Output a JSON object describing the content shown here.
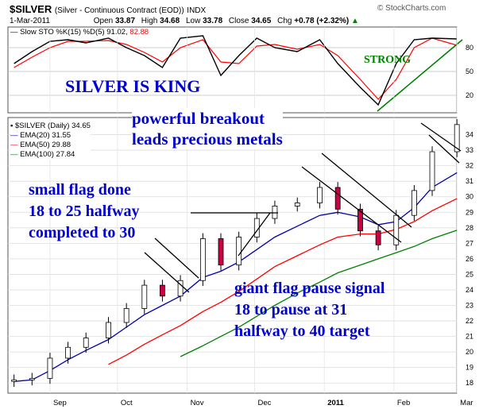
{
  "header": {
    "symbol": "$SILVER",
    "description": "(Silver - Continuous Contract (EOD))",
    "exchange": "INDX",
    "watermark": "© StockCharts.com",
    "date": "1-Mar-2011",
    "open_label": "Open",
    "open": "33.87",
    "high_label": "High",
    "high": "34.68",
    "low_label": "Low",
    "low": "33.78",
    "close_label": "Close",
    "close": "34.65",
    "chg_label": "Chg",
    "chg": "+0.78 (+2.32%)",
    "chg_arrow": "▲"
  },
  "stoch_panel": {
    "legend_prefix": "— Slow STO %K(15) %D(5)",
    "k_value": "91.02,",
    "d_value": "82.88",
    "ticks": [
      20,
      50,
      80
    ],
    "ylim": [
      0,
      100
    ],
    "k_color": "#000000",
    "d_color": "#ff0000"
  },
  "price_panel": {
    "legend_title": "$SILVER (Daily) 34.65",
    "ema20_label": "EMA(20) 31.55",
    "ema50_label": "EMA(50) 29.88",
    "ema100_label": "EMA(100) 27.84",
    "ema20_color": "#0000aa",
    "ema50_color": "#ff0000",
    "ema100_color": "#008000",
    "up_color": "#ffffff",
    "down_color": "#cc0044"
  },
  "annotations": {
    "title": "SILVER IS KING",
    "strong": "STRONG",
    "breakout_line1": "powerful breakout",
    "breakout_line2": "leads precious metals",
    "small_flag_line1": "small flag done",
    "small_flag_line2": "18 to 25 halfway",
    "small_flag_line3": "completed to 30",
    "giant_flag_line1": "giant flag pause signal",
    "giant_flag_line2": "18 to pause at 31",
    "giant_flag_line3": "halfway to 40 target"
  },
  "chart_data": [
    {
      "type": "line",
      "title": "Slow STO %K(15) %D(5)",
      "ylim": [
        0,
        100
      ],
      "x": [
        "2010-08-16",
        "2010-08-24",
        "2010-09-01",
        "2010-09-09",
        "2010-09-17",
        "2010-09-27",
        "2010-10-05",
        "2010-10-13",
        "2010-10-21",
        "2010-10-29",
        "2010-11-08",
        "2010-11-16",
        "2010-11-24",
        "2010-12-02",
        "2010-12-10",
        "2010-12-20",
        "2010-12-30",
        "2011-01-07",
        "2011-01-17",
        "2011-01-25",
        "2011-02-02",
        "2011-02-10",
        "2011-02-18",
        "2011-03-01"
      ],
      "series": [
        {
          "name": "%K",
          "values": [
            60,
            75,
            88,
            90,
            86,
            92,
            80,
            70,
            55,
            92,
            95,
            45,
            70,
            92,
            80,
            75,
            90,
            60,
            30,
            8,
            60,
            90,
            92,
            91
          ]
        },
        {
          "name": "%D",
          "values": [
            55,
            68,
            80,
            88,
            88,
            89,
            84,
            74,
            62,
            80,
            90,
            62,
            60,
            82,
            84,
            78,
            84,
            70,
            40,
            15,
            40,
            80,
            92,
            83
          ]
        }
      ]
    },
    {
      "type": "candlestick",
      "title": "$SILVER (Daily) 34.65",
      "ylim": [
        17.5,
        35
      ],
      "yticks": [
        18,
        19,
        20,
        21,
        22,
        23,
        24,
        25,
        26,
        27,
        28,
        29,
        30,
        31,
        32,
        33,
        34
      ],
      "xticks": [
        "Sep",
        "Oct",
        "Nov",
        "Dec",
        "2011",
        "Feb",
        "Mar"
      ],
      "x": [
        "2010-08-16",
        "2010-08-24",
        "2010-09-01",
        "2010-09-09",
        "2010-09-17",
        "2010-09-27",
        "2010-10-05",
        "2010-10-13",
        "2010-10-21",
        "2010-10-29",
        "2010-11-08",
        "2010-11-16",
        "2010-11-24",
        "2010-12-02",
        "2010-12-10",
        "2010-12-20",
        "2010-12-30",
        "2011-01-07",
        "2011-01-17",
        "2011-01-25",
        "2011-02-02",
        "2011-02-10",
        "2011-02-18",
        "2011-03-01"
      ],
      "series": [
        {
          "name": "Close",
          "values": [
            18.2,
            18.3,
            19.6,
            20.3,
            20.9,
            21.9,
            22.8,
            24.3,
            23.6,
            24.6,
            27.3,
            25.6,
            27.4,
            28.6,
            29.4,
            29.6,
            30.6,
            29.2,
            27.8,
            26.9,
            28.8,
            30.4,
            32.9,
            34.65
          ]
        },
        {
          "name": "EMA(20)",
          "values": [
            18.1,
            18.2,
            18.8,
            19.5,
            20.1,
            20.8,
            21.6,
            22.4,
            23.0,
            23.6,
            24.8,
            25.2,
            25.8,
            26.6,
            27.4,
            28.1,
            28.8,
            29.0,
            28.7,
            28.2,
            28.4,
            29.3,
            30.6,
            31.55
          ]
        },
        {
          "name": "EMA(50)",
          "values": [
            null,
            null,
            null,
            null,
            null,
            19.2,
            19.8,
            20.5,
            21.1,
            21.7,
            22.6,
            23.2,
            23.9,
            24.7,
            25.5,
            26.2,
            26.9,
            27.4,
            27.6,
            27.6,
            27.9,
            28.4,
            29.1,
            29.88
          ]
        },
        {
          "name": "EMA(100)",
          "values": [
            null,
            null,
            null,
            null,
            null,
            null,
            null,
            null,
            null,
            19.7,
            20.4,
            21.0,
            21.6,
            22.3,
            23.0,
            23.8,
            24.5,
            25.1,
            25.6,
            26.0,
            26.4,
            26.8,
            27.3,
            27.84
          ]
        }
      ]
    }
  ]
}
